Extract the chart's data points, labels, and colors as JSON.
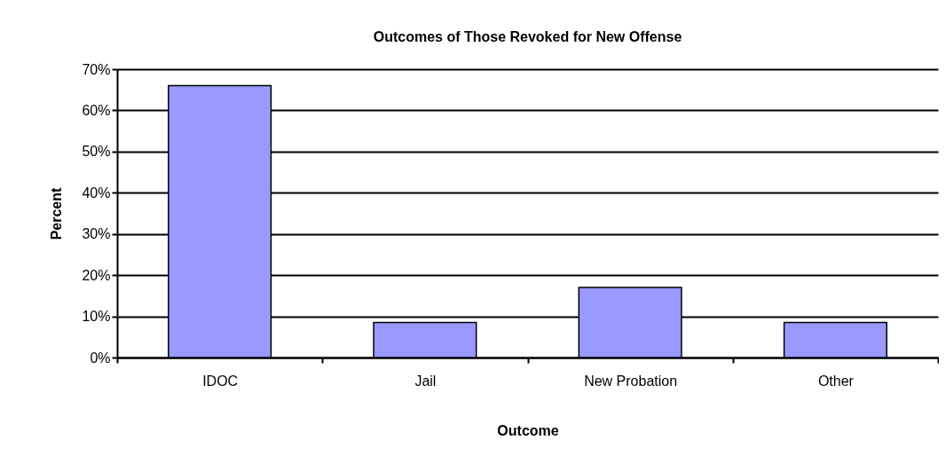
{
  "chart_data": {
    "type": "bar",
    "title": "Outcomes of Those Revoked for New Offense",
    "xlabel": "Outcome",
    "ylabel": "Percent",
    "categories": [
      "IDOC",
      "Jail",
      "New Probation",
      "Other"
    ],
    "values": [
      66,
      8.5,
      17,
      8.5
    ],
    "color": "#9999ff",
    "ylim": [
      0,
      70
    ],
    "yticks": [
      {
        "value": 0,
        "label": "0%"
      },
      {
        "value": 10,
        "label": "10%"
      },
      {
        "value": 20,
        "label": "20%"
      },
      {
        "value": 30,
        "label": "30%"
      },
      {
        "value": 40,
        "label": "40%"
      },
      {
        "value": 50,
        "label": "50%"
      },
      {
        "value": 60,
        "label": "60%"
      },
      {
        "value": 70,
        "label": "70%"
      }
    ],
    "grid": "y"
  }
}
